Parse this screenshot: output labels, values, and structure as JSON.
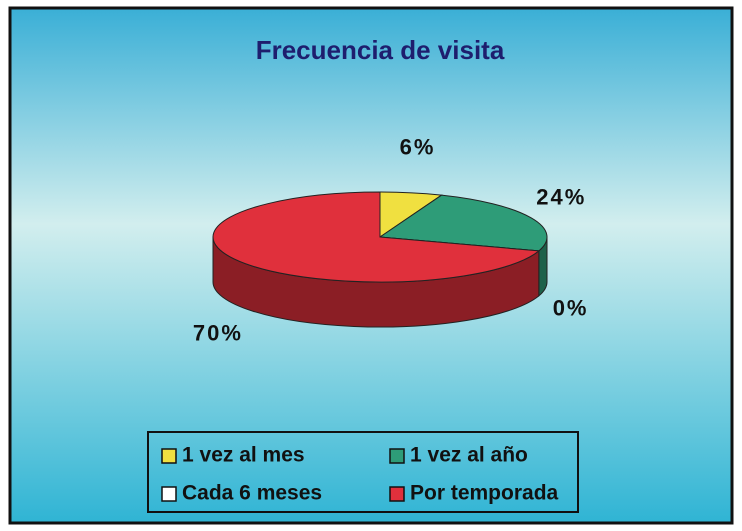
{
  "chart_data": {
    "type": "pie",
    "title": "Frecuencia de visita",
    "categories": [
      "1 vez al mes",
      "1 vez al año",
      "Cada 6 meses",
      "Por temporada"
    ],
    "values": [
      6,
      24,
      0,
      70
    ],
    "value_labels": [
      "6%",
      "24%",
      "0%",
      "70%"
    ],
    "colors": [
      "#f0e040",
      "#2e9c78",
      "#ffffff",
      "#e0303c"
    ],
    "legend": "bottom"
  }
}
